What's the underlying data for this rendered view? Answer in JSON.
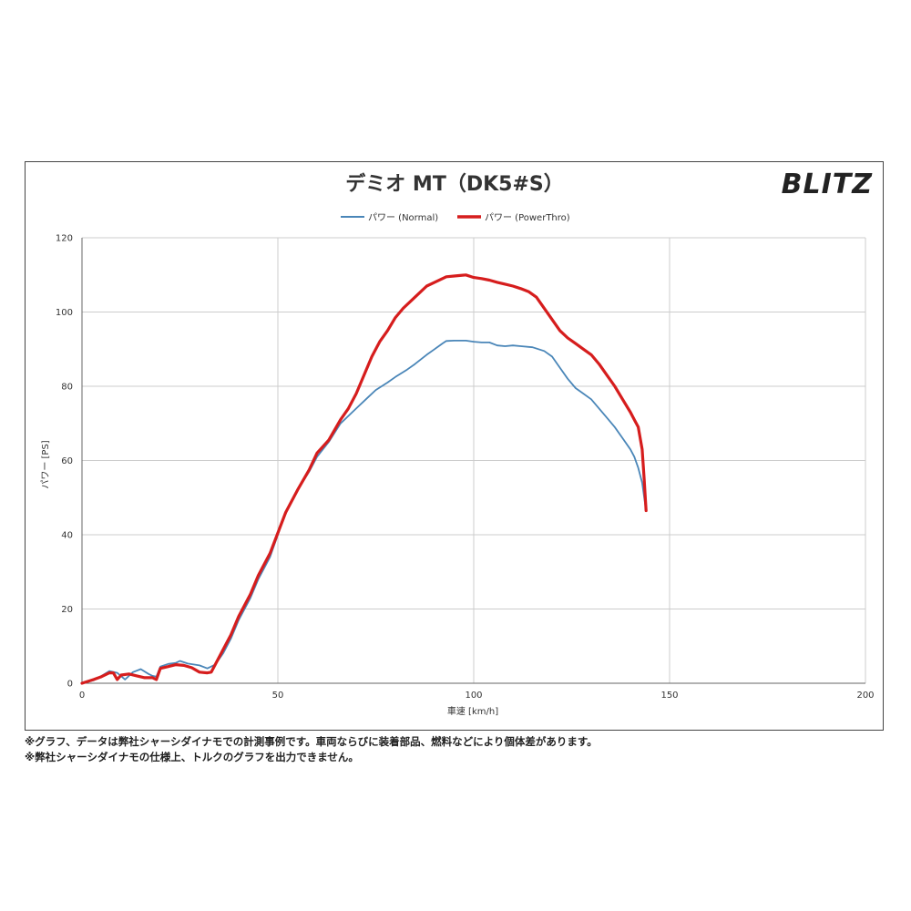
{
  "chart_data": {
    "type": "line",
    "title": "デミオ MT（DK5#S）",
    "brand_logo": "BLITZ",
    "xlabel": "車速 [km/h]",
    "ylabel": "パワー [PS]",
    "xlim": [
      0,
      200
    ],
    "ylim": [
      0,
      120
    ],
    "xticks": [
      0,
      50,
      100,
      150,
      200
    ],
    "yticks": [
      0,
      20,
      40,
      60,
      80,
      100,
      120
    ],
    "grid": true,
    "legend_position": "top-center",
    "series": [
      {
        "name": "パワー (Normal)",
        "color": "#4a86b8",
        "points": [
          [
            0,
            0
          ],
          [
            3,
            0.8
          ],
          [
            5,
            2
          ],
          [
            7,
            3.3
          ],
          [
            9,
            2.8
          ],
          [
            11,
            1
          ],
          [
            13,
            3
          ],
          [
            15,
            3.8
          ],
          [
            17,
            2.5
          ],
          [
            18,
            2
          ],
          [
            19,
            1.8
          ],
          [
            20,
            4.5
          ],
          [
            22,
            5.2
          ],
          [
            24,
            5.5
          ],
          [
            25,
            6
          ],
          [
            27,
            5.3
          ],
          [
            30,
            4.8
          ],
          [
            32,
            4
          ],
          [
            34,
            5
          ],
          [
            36,
            8
          ],
          [
            38,
            12
          ],
          [
            40,
            17
          ],
          [
            43,
            23
          ],
          [
            45,
            28
          ],
          [
            48,
            34
          ],
          [
            50,
            40
          ],
          [
            52,
            46
          ],
          [
            55,
            52
          ],
          [
            58,
            57
          ],
          [
            60,
            61
          ],
          [
            63,
            65
          ],
          [
            66,
            70
          ],
          [
            68,
            72
          ],
          [
            70,
            74
          ],
          [
            73,
            77
          ],
          [
            75,
            79
          ],
          [
            78,
            81
          ],
          [
            80,
            82.5
          ],
          [
            83,
            84.5
          ],
          [
            85,
            86
          ],
          [
            88,
            88.5
          ],
          [
            90,
            90
          ],
          [
            92,
            91.5
          ],
          [
            93,
            92.2
          ],
          [
            95,
            92.3
          ],
          [
            98,
            92.3
          ],
          [
            100,
            92
          ],
          [
            102,
            91.8
          ],
          [
            104,
            91.8
          ],
          [
            106,
            91
          ],
          [
            108,
            90.8
          ],
          [
            110,
            91
          ],
          [
            112,
            90.8
          ],
          [
            115,
            90.5
          ],
          [
            118,
            89.5
          ],
          [
            120,
            88
          ],
          [
            122,
            85
          ],
          [
            124,
            82
          ],
          [
            126,
            79.5
          ],
          [
            128,
            78
          ],
          [
            130,
            76.5
          ],
          [
            132,
            74
          ],
          [
            134,
            71.5
          ],
          [
            136,
            69
          ],
          [
            138,
            66
          ],
          [
            140,
            63
          ],
          [
            141,
            61
          ],
          [
            142,
            58
          ],
          [
            143,
            54
          ],
          [
            143.8,
            48
          ],
          [
            144,
            46.5
          ]
        ]
      },
      {
        "name": "パワー (PowerThro)",
        "color": "#d61d1d",
        "points": [
          [
            0,
            0
          ],
          [
            3,
            1
          ],
          [
            5,
            1.8
          ],
          [
            7,
            2.8
          ],
          [
            8,
            2.8
          ],
          [
            9,
            1
          ],
          [
            10,
            2.2
          ],
          [
            12,
            2.5
          ],
          [
            14,
            2
          ],
          [
            16,
            1.5
          ],
          [
            18,
            1.5
          ],
          [
            19,
            1
          ],
          [
            20,
            4
          ],
          [
            22,
            4.5
          ],
          [
            24,
            5
          ],
          [
            26,
            4.8
          ],
          [
            28,
            4.2
          ],
          [
            30,
            3
          ],
          [
            32,
            2.8
          ],
          [
            33,
            3
          ],
          [
            34,
            5
          ],
          [
            36,
            9
          ],
          [
            38,
            13
          ],
          [
            40,
            18
          ],
          [
            43,
            24
          ],
          [
            45,
            29
          ],
          [
            48,
            35
          ],
          [
            50,
            40.5
          ],
          [
            52,
            46
          ],
          [
            55,
            52
          ],
          [
            58,
            57.5
          ],
          [
            60,
            62
          ],
          [
            63,
            65.5
          ],
          [
            66,
            71
          ],
          [
            68,
            74
          ],
          [
            70,
            78
          ],
          [
            72,
            83
          ],
          [
            74,
            88
          ],
          [
            76,
            92
          ],
          [
            78,
            95
          ],
          [
            80,
            98.5
          ],
          [
            82,
            101
          ],
          [
            85,
            104
          ],
          [
            88,
            107
          ],
          [
            90,
            108
          ],
          [
            93,
            109.5
          ],
          [
            95,
            109.7
          ],
          [
            98,
            110
          ],
          [
            100,
            109.3
          ],
          [
            102,
            109
          ],
          [
            104,
            108.6
          ],
          [
            106,
            108
          ],
          [
            108,
            107.5
          ],
          [
            110,
            107
          ],
          [
            112,
            106.3
          ],
          [
            114,
            105.5
          ],
          [
            116,
            104
          ],
          [
            118,
            101
          ],
          [
            120,
            98
          ],
          [
            122,
            95
          ],
          [
            124,
            93
          ],
          [
            126,
            91.5
          ],
          [
            128,
            90
          ],
          [
            130,
            88.5
          ],
          [
            132,
            86
          ],
          [
            134,
            83
          ],
          [
            136,
            80
          ],
          [
            138,
            76.5
          ],
          [
            140,
            73
          ],
          [
            141,
            71
          ],
          [
            142,
            69
          ],
          [
            143,
            63
          ],
          [
            143.5,
            55
          ],
          [
            144,
            46.5
          ]
        ]
      }
    ]
  },
  "notes": [
    "※グラフ、データは弊社シャーシダイナモでの計測事例です。車両ならびに装着部品、燃料などにより個体差があります。",
    "※弊社シャーシダイナモの仕様上、トルクのグラフを出力できません。"
  ]
}
